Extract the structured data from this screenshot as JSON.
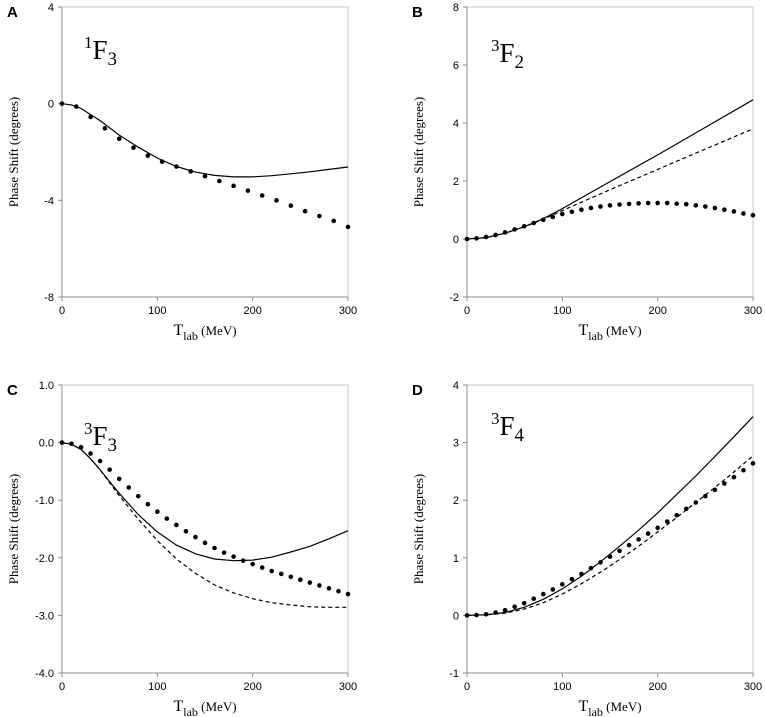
{
  "chart_data": [
    {
      "type": "line",
      "panel": "A",
      "partial_wave": {
        "sup": "1",
        "main": "F",
        "sub": "3"
      },
      "ylabel": "Phase Shift (degrees)",
      "xlabel": {
        "main": "T",
        "sub": "lab",
        "unit": " (MeV)"
      },
      "xlim": [
        0,
        300
      ],
      "ylim": [
        -8,
        4
      ],
      "xticks": [
        0,
        100,
        200,
        300
      ],
      "xtick_labels": [
        "0",
        "100",
        "200",
        "300"
      ],
      "yticks": [
        -8,
        -4,
        0,
        4
      ],
      "ytick_labels": [
        "-8",
        "-4",
        "0",
        "4"
      ],
      "series": [
        {
          "name": "solid",
          "style": "solid",
          "x": [
            0,
            10,
            20,
            40,
            60,
            80,
            100,
            120,
            140,
            160,
            180,
            200,
            220,
            240,
            260,
            280,
            300
          ],
          "y": [
            0,
            -0.05,
            -0.2,
            -0.7,
            -1.3,
            -1.8,
            -2.25,
            -2.6,
            -2.83,
            -2.97,
            -3.03,
            -3.03,
            -2.98,
            -2.9,
            -2.82,
            -2.72,
            -2.62
          ]
        },
        {
          "name": "data",
          "style": "dots",
          "x": [
            0,
            15,
            30,
            45,
            60,
            75,
            90,
            105,
            120,
            135,
            150,
            165,
            180,
            195,
            210,
            225,
            240,
            255,
            270,
            285,
            300
          ],
          "y": [
            0,
            -0.12,
            -0.55,
            -1.02,
            -1.45,
            -1.82,
            -2.15,
            -2.4,
            -2.6,
            -2.8,
            -3.0,
            -3.2,
            -3.4,
            -3.6,
            -3.8,
            -4.0,
            -4.22,
            -4.45,
            -4.65,
            -4.85,
            -5.1
          ]
        }
      ]
    },
    {
      "type": "line",
      "panel": "B",
      "partial_wave": {
        "sup": "3",
        "main": "F",
        "sub": "2"
      },
      "ylabel": "Phase Shift (degrees)",
      "xlabel": {
        "main": "T",
        "sub": "lab",
        "unit": " (MeV)"
      },
      "xlim": [
        0,
        300
      ],
      "ylim": [
        -2,
        8
      ],
      "xticks": [
        0,
        100,
        200,
        300
      ],
      "xtick_labels": [
        "0",
        "100",
        "200",
        "300"
      ],
      "yticks": [
        -2,
        0,
        2,
        4,
        6,
        8
      ],
      "ytick_labels": [
        "-2",
        "0",
        "2",
        "4",
        "6",
        "8"
      ],
      "series": [
        {
          "name": "solid",
          "style": "solid",
          "x": [
            0,
            20,
            40,
            60,
            80,
            100,
            150,
            200,
            250,
            300
          ],
          "y": [
            0,
            0.05,
            0.2,
            0.42,
            0.7,
            1.05,
            1.98,
            2.9,
            3.85,
            4.8
          ]
        },
        {
          "name": "dashed",
          "style": "dashed",
          "x": [
            0,
            20,
            40,
            60,
            80,
            100,
            150,
            200,
            250,
            300
          ],
          "y": [
            0,
            0.05,
            0.2,
            0.42,
            0.68,
            0.98,
            1.7,
            2.4,
            3.1,
            3.8
          ]
        },
        {
          "name": "data",
          "style": "dots",
          "x": [
            0,
            10,
            20,
            30,
            40,
            50,
            60,
            70,
            80,
            90,
            100,
            110,
            120,
            130,
            140,
            150,
            160,
            170,
            180,
            190,
            200,
            210,
            220,
            230,
            240,
            250,
            260,
            270,
            280,
            290,
            300
          ],
          "y": [
            0,
            0.02,
            0.07,
            0.14,
            0.23,
            0.33,
            0.44,
            0.55,
            0.66,
            0.76,
            0.86,
            0.94,
            1.01,
            1.07,
            1.12,
            1.16,
            1.19,
            1.21,
            1.23,
            1.24,
            1.24,
            1.24,
            1.22,
            1.2,
            1.16,
            1.12,
            1.07,
            1.01,
            0.95,
            0.88,
            0.82
          ]
        }
      ]
    },
    {
      "type": "line",
      "panel": "C",
      "partial_wave": {
        "sup": "3",
        "main": "F",
        "sub": "3"
      },
      "ylabel": "Phase Shift (degrees)",
      "xlabel": {
        "main": "T",
        "sub": "lab",
        "unit": " (MeV)"
      },
      "xlim": [
        0,
        300
      ],
      "ylim": [
        -4,
        1
      ],
      "xticks": [
        0,
        100,
        200,
        300
      ],
      "xtick_labels": [
        "0",
        "100",
        "200",
        "300"
      ],
      "yticks": [
        -4,
        -3,
        -2,
        -1,
        0,
        1
      ],
      "ytick_labels": [
        "-4.0",
        "-3.0",
        "-2.0",
        "-1.0",
        "0.0",
        "1.0"
      ],
      "series": [
        {
          "name": "solid",
          "style": "solid",
          "x": [
            0,
            10,
            20,
            30,
            40,
            50,
            60,
            80,
            100,
            120,
            140,
            160,
            180,
            200,
            220,
            240,
            260,
            280,
            300
          ],
          "y": [
            0,
            -0.03,
            -0.12,
            -0.28,
            -0.47,
            -0.68,
            -0.88,
            -1.25,
            -1.55,
            -1.78,
            -1.93,
            -2.02,
            -2.05,
            -2.04,
            -1.99,
            -1.9,
            -1.8,
            -1.67,
            -1.53
          ]
        },
        {
          "name": "dashed",
          "style": "dashed",
          "x": [
            0,
            10,
            20,
            30,
            40,
            50,
            60,
            80,
            100,
            120,
            140,
            160,
            180,
            200,
            220,
            240,
            260,
            280,
            300
          ],
          "y": [
            0,
            -0.03,
            -0.12,
            -0.28,
            -0.47,
            -0.7,
            -0.92,
            -1.33,
            -1.7,
            -2.02,
            -2.27,
            -2.47,
            -2.61,
            -2.71,
            -2.78,
            -2.82,
            -2.85,
            -2.86,
            -2.86
          ]
        },
        {
          "name": "data",
          "style": "dots",
          "x": [
            0,
            10,
            20,
            30,
            40,
            50,
            60,
            70,
            80,
            90,
            100,
            110,
            120,
            130,
            140,
            150,
            160,
            170,
            180,
            190,
            200,
            210,
            220,
            230,
            240,
            250,
            260,
            270,
            280,
            290,
            300
          ],
          "y": [
            0,
            -0.02,
            -0.08,
            -0.19,
            -0.32,
            -0.47,
            -0.63,
            -0.78,
            -0.93,
            -1.07,
            -1.2,
            -1.32,
            -1.43,
            -1.54,
            -1.64,
            -1.74,
            -1.83,
            -1.91,
            -1.98,
            -2.05,
            -2.11,
            -2.17,
            -2.23,
            -2.28,
            -2.33,
            -2.38,
            -2.43,
            -2.48,
            -2.53,
            -2.58,
            -2.63
          ]
        }
      ]
    },
    {
      "type": "line",
      "panel": "D",
      "partial_wave": {
        "sup": "3",
        "main": "F",
        "sub": "4"
      },
      "ylabel": "Phase Shift (degrees)",
      "xlabel": {
        "main": "T",
        "sub": "lab",
        "unit": " (MeV)"
      },
      "xlim": [
        0,
        300
      ],
      "ylim": [
        -1,
        4
      ],
      "xticks": [
        0,
        100,
        200,
        300
      ],
      "xtick_labels": [
        "0",
        "100",
        "200",
        "300"
      ],
      "yticks": [
        -1,
        0,
        1,
        2,
        3,
        4
      ],
      "ytick_labels": [
        "-1",
        "0",
        "1",
        "2",
        "3",
        "4"
      ],
      "series": [
        {
          "name": "solid",
          "style": "solid",
          "x": [
            0,
            20,
            40,
            60,
            80,
            100,
            120,
            140,
            160,
            180,
            200,
            220,
            240,
            260,
            280,
            300
          ],
          "y": [
            0,
            0.01,
            0.05,
            0.14,
            0.28,
            0.46,
            0.68,
            0.93,
            1.2,
            1.48,
            1.78,
            2.1,
            2.42,
            2.76,
            3.1,
            3.45
          ]
        },
        {
          "name": "dashed",
          "style": "dashed",
          "x": [
            0,
            20,
            40,
            60,
            80,
            100,
            120,
            140,
            160,
            180,
            200,
            220,
            240,
            260,
            280,
            300
          ],
          "y": [
            0,
            0.01,
            0.04,
            0.11,
            0.22,
            0.37,
            0.55,
            0.75,
            0.97,
            1.2,
            1.45,
            1.7,
            1.96,
            2.22,
            2.49,
            2.77
          ]
        },
        {
          "name": "data",
          "style": "dots",
          "x": [
            0,
            10,
            20,
            30,
            40,
            50,
            60,
            70,
            80,
            90,
            100,
            110,
            120,
            130,
            140,
            150,
            160,
            170,
            180,
            190,
            200,
            210,
            220,
            230,
            240,
            250,
            260,
            270,
            280,
            290,
            300
          ],
          "y": [
            0,
            0.005,
            0.02,
            0.05,
            0.09,
            0.15,
            0.21,
            0.29,
            0.37,
            0.45,
            0.54,
            0.63,
            0.72,
            0.82,
            0.92,
            1.02,
            1.12,
            1.22,
            1.32,
            1.42,
            1.52,
            1.63,
            1.74,
            1.85,
            1.96,
            2.07,
            2.18,
            2.29,
            2.4,
            2.52,
            2.64
          ]
        }
      ]
    }
  ]
}
